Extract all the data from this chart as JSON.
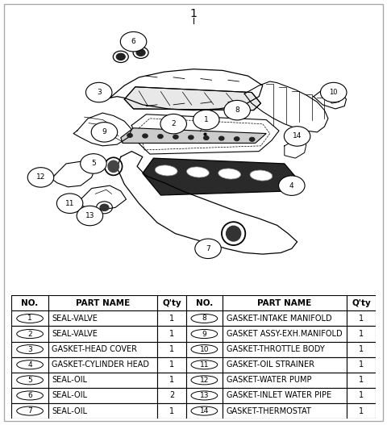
{
  "title": "1",
  "bg_color": "#ffffff",
  "border_color": "#888888",
  "table_header": [
    "NO.",
    "PART NAME",
    "Q'ty",
    "NO.",
    "PART NAME",
    "Q'ty"
  ],
  "left_parts": [
    {
      "no": 1,
      "name": "SEAL-VALVE",
      "qty": "1"
    },
    {
      "no": 2,
      "name": "SEAL-VALVE",
      "qty": "1"
    },
    {
      "no": 3,
      "name": "GASKET-HEAD COVER",
      "qty": "1"
    },
    {
      "no": 4,
      "name": "GASKET-CYLINDER HEAD",
      "qty": "1"
    },
    {
      "no": 5,
      "name": "SEAL-OIL",
      "qty": "1"
    },
    {
      "no": 6,
      "name": "SEAL-OIL",
      "qty": "2"
    },
    {
      "no": 7,
      "name": "SEAL-OIL",
      "qty": "1"
    }
  ],
  "right_parts": [
    {
      "no": 8,
      "name": "GASKET-INTAKE MANIFOLD",
      "qty": "1"
    },
    {
      "no": 9,
      "name": "GASKET ASSY-EXH.MANIFOLD",
      "qty": "1"
    },
    {
      "no": 10,
      "name": "GASKET-THROTTLE BODY",
      "qty": "1"
    },
    {
      "no": 11,
      "name": "GASKET-OIL STRAINER",
      "qty": "1"
    },
    {
      "no": 12,
      "name": "GASKET-WATER PUMP",
      "qty": "1"
    },
    {
      "no": 13,
      "name": "GASKET-INLET WATER PIPE",
      "qty": "1"
    },
    {
      "no": 14,
      "name": "GASKET-THERMOSTAT",
      "qty": "1"
    }
  ],
  "font_size_header": 7.5,
  "font_size_data": 7.0
}
